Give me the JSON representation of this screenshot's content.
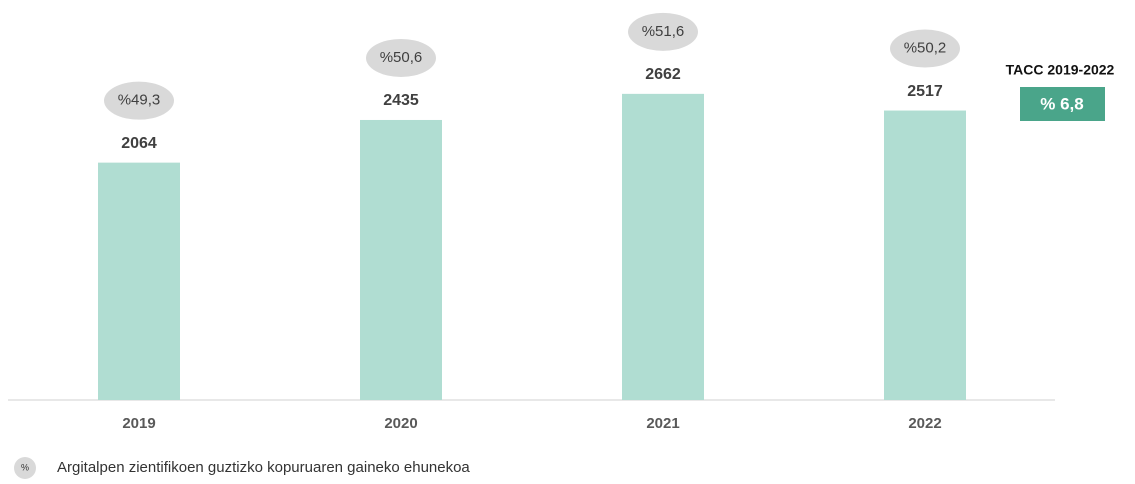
{
  "chart_data": {
    "type": "bar",
    "categories": [
      "2019",
      "2020",
      "2021",
      "2022"
    ],
    "values": [
      2064,
      2435,
      2662,
      2517
    ],
    "color": "#b0ddd2",
    "ylim": [
      0,
      3000
    ],
    "shares": {
      "values": [
        49.3,
        50.6,
        51.6,
        50.2
      ],
      "value_labels": [
        "%49,3",
        "%50,6",
        "%51,6",
        "%50,2"
      ],
      "color": "#d9d9d9"
    },
    "cagr": {
      "label": "TACC 2019-2022",
      "value": 6.8,
      "value_label": "% 6,8",
      "color": "#4aa58a"
    },
    "legend": {
      "symbol": "%",
      "text": "Argitalpen zientifikoen guztizko kopuruaren gaineko ehunekoa"
    }
  }
}
